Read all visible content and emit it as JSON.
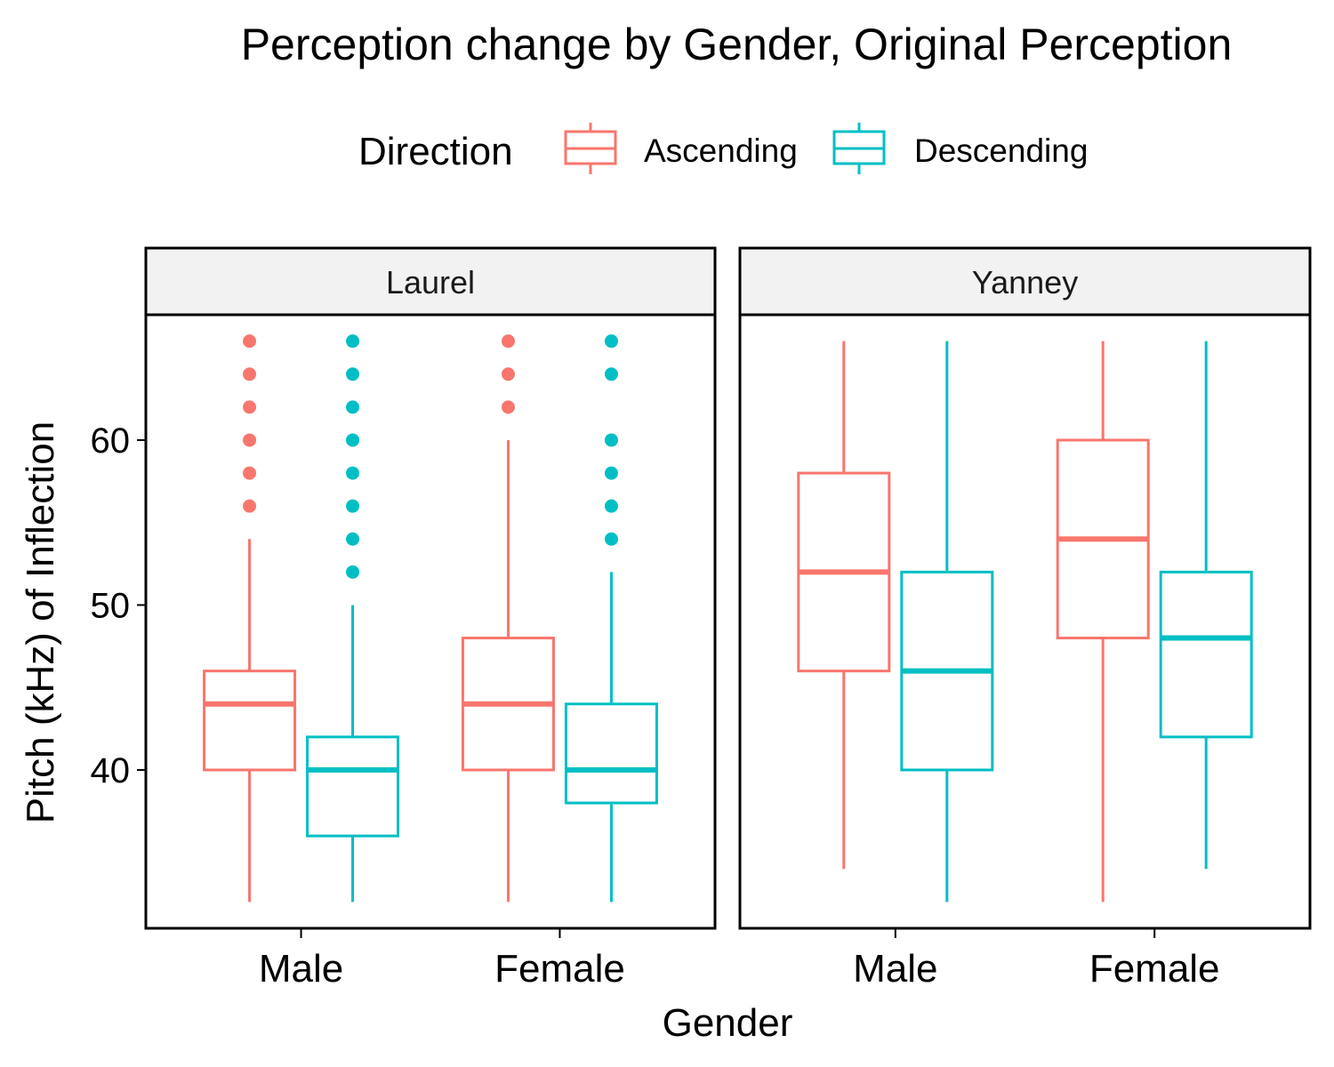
{
  "chart_data": {
    "type": "boxplot",
    "title": "Perception change by Gender, Original Perception",
    "xlabel": "Gender",
    "ylabel": "Pitch (kHz) of Inflection",
    "ylim": [
      30.4,
      67.6
    ],
    "yticks": [
      40,
      50,
      60
    ],
    "categories": [
      "Male",
      "Female"
    ],
    "legend": {
      "title": "Direction",
      "position": "top",
      "entries": [
        "Ascending",
        "Descending"
      ]
    },
    "colors": {
      "Ascending": "#F8766D",
      "Descending": "#00BFC4"
    },
    "grid": false,
    "facets": [
      {
        "label": "Laurel",
        "series": [
          {
            "name": "Ascending",
            "boxes": [
              {
                "category": "Male",
                "whisker_low": 32,
                "q1": 40,
                "median": 44,
                "q3": 46,
                "whisker_high": 54,
                "outliers": [
                  56,
                  58,
                  60,
                  62,
                  64,
                  66
                ]
              },
              {
                "category": "Female",
                "whisker_low": 32,
                "q1": 40,
                "median": 44,
                "q3": 48,
                "whisker_high": 60,
                "outliers": [
                  62,
                  64,
                  66
                ]
              }
            ]
          },
          {
            "name": "Descending",
            "boxes": [
              {
                "category": "Male",
                "whisker_low": 32,
                "q1": 36,
                "median": 40,
                "q3": 42,
                "whisker_high": 50,
                "outliers": [
                  52,
                  54,
                  56,
                  58,
                  60,
                  62,
                  64,
                  66
                ]
              },
              {
                "category": "Female",
                "whisker_low": 32,
                "q1": 38,
                "median": 40,
                "q3": 44,
                "whisker_high": 52,
                "outliers": [
                  54,
                  56,
                  58,
                  60,
                  64,
                  66
                ]
              }
            ]
          }
        ]
      },
      {
        "label": "Yanney",
        "series": [
          {
            "name": "Ascending",
            "boxes": [
              {
                "category": "Male",
                "whisker_low": 34,
                "q1": 46,
                "median": 52,
                "q3": 58,
                "whisker_high": 66,
                "outliers": []
              },
              {
                "category": "Female",
                "whisker_low": 32,
                "q1": 48,
                "median": 54,
                "q3": 60,
                "whisker_high": 66,
                "outliers": []
              }
            ]
          },
          {
            "name": "Descending",
            "boxes": [
              {
                "category": "Male",
                "whisker_low": 32,
                "q1": 40,
                "median": 46,
                "q3": 52,
                "whisker_high": 66,
                "outliers": []
              },
              {
                "category": "Female",
                "whisker_low": 34,
                "q1": 42,
                "median": 48,
                "q3": 52,
                "whisker_high": 66,
                "outliers": []
              }
            ]
          }
        ]
      }
    ]
  }
}
